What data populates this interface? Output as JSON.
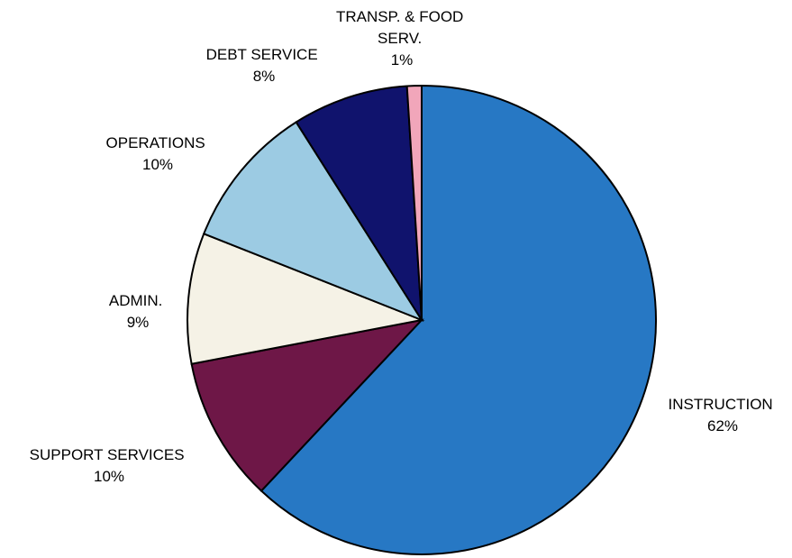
{
  "chart_data": {
    "type": "pie",
    "slices": [
      {
        "label": "INSTRUCTION",
        "percent_label": "62%",
        "value": 62,
        "color": "#2778c4"
      },
      {
        "label": "SUPPORT SERVICES",
        "percent_label": "10%",
        "value": 10,
        "color": "#6e1747"
      },
      {
        "label": "ADMIN.",
        "percent_label": "9%",
        "value": 9,
        "color": "#f5f2e6"
      },
      {
        "label": "OPERATIONS",
        "percent_label": "10%",
        "value": 10,
        "color": "#9ccbe3"
      },
      {
        "label": "DEBT SERVICE",
        "percent_label": "8%",
        "value": 8,
        "color": "#10136d"
      },
      {
        "label": "TRANSP. & FOOD SERV.",
        "percent_label": "1%",
        "value": 1,
        "color": "#f1a6ba"
      }
    ]
  }
}
